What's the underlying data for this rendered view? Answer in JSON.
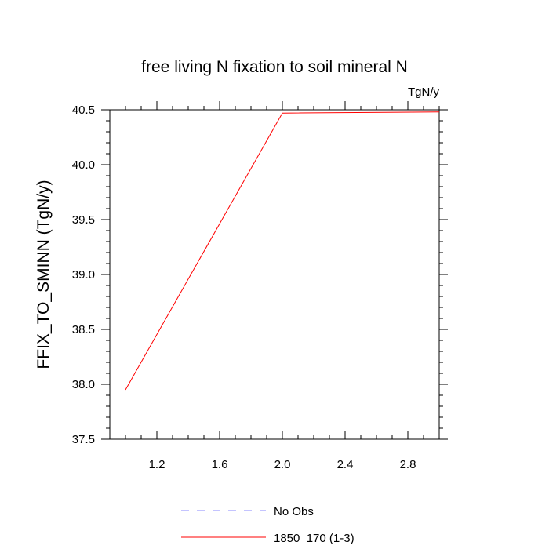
{
  "chart_data": {
    "type": "line",
    "title": "free living N fixation to soil mineral N",
    "units": "TgN/y",
    "xlabel": "",
    "ylabel": "FFIX_TO_SMINN  (TgN/y)",
    "xlim": [
      0.9,
      3.0
    ],
    "ylim": [
      37.5,
      40.5
    ],
    "xticks": [
      "1.2",
      "1.6",
      "2.0",
      "2.4",
      "2.8"
    ],
    "yticks": [
      "37.5",
      "38.0",
      "38.5",
      "39.0",
      "39.5",
      "40.0",
      "40.5"
    ],
    "legend": {
      "placement": "bottom-center",
      "entries": [
        {
          "label": "No Obs",
          "color": "#8a8aff",
          "style": "dashed"
        },
        {
          "label": "1850_170 (1-3)",
          "color": "#ff0000",
          "style": "solid"
        }
      ]
    },
    "series": [
      {
        "name": "1850_170 (1-3)",
        "color": "#ff0000",
        "x": [
          1.0,
          2.0,
          3.0
        ],
        "y": [
          37.95,
          40.47,
          40.48
        ]
      }
    ]
  }
}
